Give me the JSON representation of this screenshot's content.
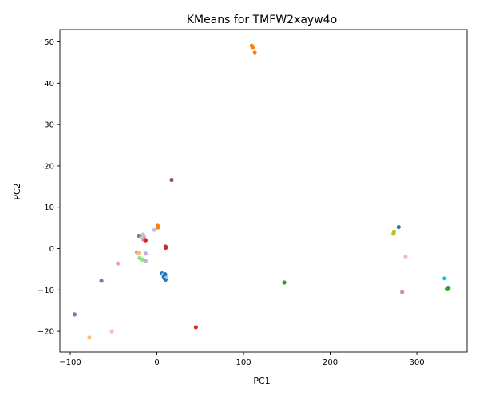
{
  "chart_data": {
    "type": "scatter",
    "title": "KMeans for TMFW2xayw4o",
    "xlabel": "PC1",
    "ylabel": "PC2",
    "xlim": [
      -112,
      358
    ],
    "ylim": [
      -25,
      53
    ],
    "xticks": [
      -100,
      0,
      100,
      200,
      300
    ],
    "yticks": [
      -20,
      -10,
      0,
      10,
      20,
      30,
      40,
      50
    ],
    "grid": false,
    "legend": "none",
    "points": [
      {
        "x": 109.5,
        "y": 49.1,
        "color": "#ff7f0e"
      },
      {
        "x": 110.5,
        "y": 48.6,
        "color": "#ff7f0e"
      },
      {
        "x": 113.0,
        "y": 47.4,
        "color": "#ff7f0e"
      },
      {
        "x": 17.0,
        "y": 16.6,
        "color": "#8c564b"
      },
      {
        "x": 1.0,
        "y": 5.5,
        "color": "#ff7f0e"
      },
      {
        "x": 1.2,
        "y": 5.1,
        "color": "#ff7f0e"
      },
      {
        "x": -3.0,
        "y": 4.5,
        "color": "#aec7e8"
      },
      {
        "x": -21.0,
        "y": 3.1,
        "color": "#7f7f7f"
      },
      {
        "x": -18.0,
        "y": 3.0,
        "color": "#7f7f7f"
      },
      {
        "x": -16.0,
        "y": 3.4,
        "color": "#aec7e8"
      },
      {
        "x": -15.0,
        "y": 3.0,
        "color": "#aec7e8"
      },
      {
        "x": -14.5,
        "y": 2.5,
        "color": "#ff9896"
      },
      {
        "x": -15.5,
        "y": 2.2,
        "color": "#e377c2"
      },
      {
        "x": -13.0,
        "y": 2.0,
        "color": "#d62728"
      },
      {
        "x": -18.0,
        "y": 2.6,
        "color": "#c7c7c7"
      },
      {
        "x": 10.0,
        "y": 0.5,
        "color": "#d62728"
      },
      {
        "x": 10.2,
        "y": 0.2,
        "color": "#d62728"
      },
      {
        "x": -23.0,
        "y": -0.9,
        "color": "#c49c94"
      },
      {
        "x": -21.5,
        "y": -1.2,
        "color": "#dbdb8d"
      },
      {
        "x": -20.5,
        "y": -1.0,
        "color": "#ffbb78"
      },
      {
        "x": -13.0,
        "y": -1.2,
        "color": "#c5b0d5"
      },
      {
        "x": -20.0,
        "y": -2.3,
        "color": "#98df8a"
      },
      {
        "x": -18.0,
        "y": -2.6,
        "color": "#98df8a"
      },
      {
        "x": -16.0,
        "y": -2.7,
        "color": "#98df8a"
      },
      {
        "x": -13.0,
        "y": -3.0,
        "color": "#c5b0d5"
      },
      {
        "x": 6.0,
        "y": -6.0,
        "color": "#1f77b4"
      },
      {
        "x": 7.5,
        "y": -6.3,
        "color": "#aec7e8"
      },
      {
        "x": 8.0,
        "y": -6.8,
        "color": "#1f77b4"
      },
      {
        "x": 9.0,
        "y": -7.2,
        "color": "#1f77b4"
      },
      {
        "x": 10.0,
        "y": -7.5,
        "color": "#1f77b4"
      },
      {
        "x": 11.0,
        "y": -6.7,
        "color": "#aec7e8"
      },
      {
        "x": 9.5,
        "y": -6.2,
        "color": "#1f77b4"
      },
      {
        "x": -45.0,
        "y": -3.6,
        "color": "#ff9896"
      },
      {
        "x": -64.0,
        "y": -7.8,
        "color": "#9467bd"
      },
      {
        "x": -95.0,
        "y": -15.9,
        "color": "#9467bd"
      },
      {
        "x": -52.0,
        "y": -20.0,
        "color": "#f7b6d2"
      },
      {
        "x": -78.0,
        "y": -21.5,
        "color": "#ffbb78"
      },
      {
        "x": 45.0,
        "y": -19.0,
        "color": "#d62728"
      },
      {
        "x": 147.0,
        "y": -8.2,
        "color": "#2ca02c"
      },
      {
        "x": 279.0,
        "y": 5.2,
        "color": "#1f77b4"
      },
      {
        "x": 273.0,
        "y": 3.6,
        "color": "#bcbd22"
      },
      {
        "x": 273.5,
        "y": 4.1,
        "color": "#bcbd22"
      },
      {
        "x": 287.0,
        "y": -1.9,
        "color": "#f7b6d2"
      },
      {
        "x": 283.0,
        "y": -10.5,
        "color": "#c49c94"
      },
      {
        "x": 332.0,
        "y": -7.2,
        "color": "#17becf"
      },
      {
        "x": 335.5,
        "y": -9.8,
        "color": "#2ca02c"
      },
      {
        "x": 336.5,
        "y": -9.6,
        "color": "#2ca02c"
      }
    ]
  }
}
